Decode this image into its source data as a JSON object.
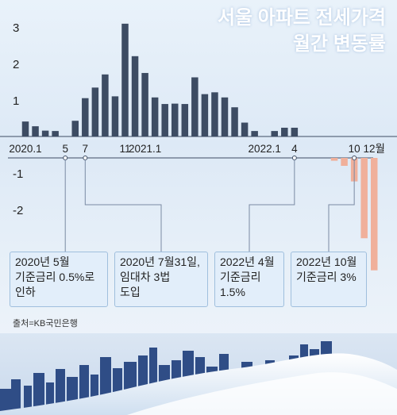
{
  "title": {
    "line1": "서울 아파트 전세가격",
    "line2": "월간 변동률"
  },
  "source": "출처=KB국민은행",
  "chart_data": {
    "type": "bar",
    "title": "서울 아파트 전세가격 월간 변동률",
    "ylim": [
      -2.7,
      3.3
    ],
    "yticks": [
      "3",
      "2",
      "1",
      "-1",
      "-2"
    ],
    "x_tick_labels": [
      {
        "label": "2020.1",
        "month_index": 0
      },
      {
        "label": "5",
        "month_index": 4
      },
      {
        "label": "7",
        "month_index": 6
      },
      {
        "label": "11",
        "month_index": 10
      },
      {
        "label": "2021.1",
        "month_index": 12
      },
      {
        "label": "2022.1",
        "month_index": 24
      },
      {
        "label": "4",
        "month_index": 27
      },
      {
        "label": "10",
        "month_index": 33
      },
      {
        "label": "12월",
        "month_index": 35
      }
    ],
    "categories": [
      "2020.1",
      "2020.2",
      "2020.3",
      "2020.4",
      "2020.5",
      "2020.6",
      "2020.7",
      "2020.8",
      "2020.9",
      "2020.10",
      "2020.11",
      "2020.12",
      "2021.1",
      "2021.2",
      "2021.3",
      "2021.4",
      "2021.5",
      "2021.6",
      "2021.7",
      "2021.8",
      "2021.9",
      "2021.10",
      "2021.11",
      "2021.12",
      "2022.1",
      "2022.2",
      "2022.3",
      "2022.4",
      "2022.5",
      "2022.6",
      "2022.7",
      "2022.8",
      "2022.9",
      "2022.10",
      "2022.11",
      "2022.12"
    ],
    "values": [
      0.41,
      0.28,
      0.16,
      0.15,
      0.0,
      0.43,
      1.05,
      1.34,
      1.7,
      1.1,
      3.09,
      2.2,
      1.74,
      1.07,
      0.89,
      0.9,
      0.89,
      1.62,
      1.16,
      1.21,
      1.07,
      0.8,
      0.38,
      0.15,
      0.0,
      0.15,
      0.24,
      0.24,
      0.0,
      0.0,
      0.0,
      -0.09,
      -0.25,
      -0.74,
      -2.53,
      -3.54
    ],
    "colors": {
      "positive": "#3d4c63",
      "negative": "#f0b09b"
    },
    "annotations": [
      {
        "month_index": 4,
        "lines": [
          "2020년 5월",
          "기준금리 0.5%로",
          "인하"
        ]
      },
      {
        "month_index": 6,
        "lines": [
          "2020년 7월31일,",
          "임대차 3법",
          "도입"
        ]
      },
      {
        "month_index": 27,
        "lines": [
          "2022년 4월",
          "기준금리",
          "1.5%"
        ]
      },
      {
        "month_index": 33,
        "lines": [
          "2022년 10월",
          "기준금리 3%"
        ]
      }
    ]
  }
}
